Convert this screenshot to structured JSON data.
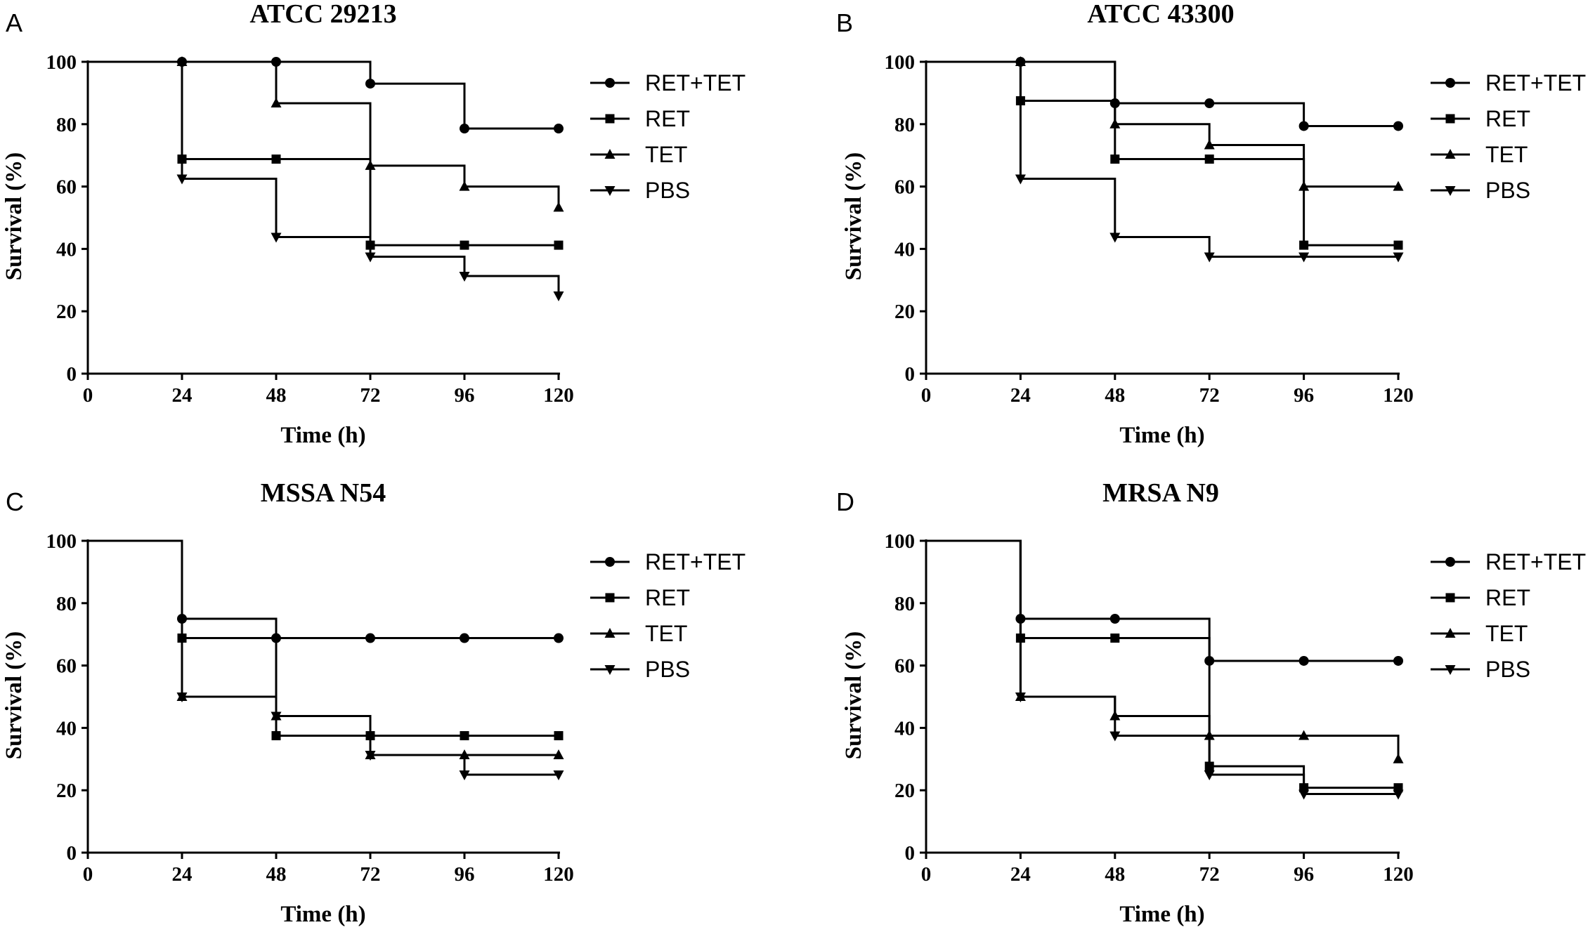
{
  "chart_data": [
    {
      "type": "line",
      "panel_letter": "A",
      "title": "ATCC 29213",
      "xlabel": "Time (h)",
      "ylabel": "Survival (%)",
      "xlim": [
        0,
        120
      ],
      "ylim": [
        0,
        100
      ],
      "xticks": [
        0,
        24,
        48,
        72,
        96,
        120
      ],
      "yticks": [
        0,
        20,
        40,
        60,
        80,
        100
      ],
      "legend_position": "top-right",
      "series": [
        {
          "name": "RET+TET",
          "marker": "circle",
          "x": [
            0,
            24,
            48,
            72,
            96,
            120
          ],
          "y": [
            100,
            100,
            100,
            93,
            78.6,
            78.6
          ]
        },
        {
          "name": "RET",
          "marker": "square",
          "x": [
            0,
            24,
            48,
            72,
            96,
            120
          ],
          "y": [
            100,
            68.8,
            68.8,
            41.2,
            41.2,
            41.2
          ]
        },
        {
          "name": "TET",
          "marker": "triangle-up",
          "x": [
            0,
            24,
            48,
            72,
            96,
            120
          ],
          "y": [
            100,
            100,
            86.7,
            66.7,
            60,
            53.3
          ]
        },
        {
          "name": "PBS",
          "marker": "triangle-down",
          "x": [
            0,
            24,
            48,
            72,
            96,
            120
          ],
          "y": [
            100,
            62.5,
            43.8,
            37.5,
            31.3,
            25
          ]
        }
      ]
    },
    {
      "type": "line",
      "panel_letter": "B",
      "title": "ATCC 43300",
      "xlabel": "Time (h)",
      "ylabel": "Survival (%)",
      "xlim": [
        0,
        120
      ],
      "ylim": [
        0,
        100
      ],
      "xticks": [
        0,
        24,
        48,
        72,
        96,
        120
      ],
      "yticks": [
        0,
        20,
        40,
        60,
        80,
        100
      ],
      "legend_position": "top-right",
      "series": [
        {
          "name": "RET+TET",
          "marker": "circle",
          "x": [
            0,
            24,
            48,
            72,
            96,
            120
          ],
          "y": [
            100,
            100,
            86.7,
            86.7,
            79.4,
            79.4
          ]
        },
        {
          "name": "RET",
          "marker": "square",
          "x": [
            0,
            24,
            48,
            72,
            96,
            120
          ],
          "y": [
            100,
            87.5,
            68.8,
            68.8,
            41.2,
            41.2
          ]
        },
        {
          "name": "TET",
          "marker": "triangle-up",
          "x": [
            0,
            24,
            48,
            72,
            96,
            120
          ],
          "y": [
            100,
            100,
            80,
            73.3,
            60,
            60
          ]
        },
        {
          "name": "PBS",
          "marker": "triangle-down",
          "x": [
            0,
            24,
            48,
            72,
            96,
            120
          ],
          "y": [
            100,
            62.5,
            43.8,
            37.5,
            37.5,
            37.5
          ]
        }
      ]
    },
    {
      "type": "line",
      "panel_letter": "C",
      "title": "MSSA N54",
      "xlabel": "Time (h)",
      "ylabel": "Survival (%)",
      "xlim": [
        0,
        120
      ],
      "ylim": [
        0,
        100
      ],
      "xticks": [
        0,
        24,
        48,
        72,
        96,
        120
      ],
      "yticks": [
        0,
        20,
        40,
        60,
        80,
        100
      ],
      "legend_position": "top-right",
      "series": [
        {
          "name": "RET+TET",
          "marker": "circle",
          "x": [
            0,
            24,
            48,
            72,
            96,
            120
          ],
          "y": [
            100,
            75,
            68.8,
            68.8,
            68.8,
            68.8
          ]
        },
        {
          "name": "RET",
          "marker": "square",
          "x": [
            0,
            24,
            48,
            72,
            96,
            120
          ],
          "y": [
            100,
            68.8,
            37.5,
            37.5,
            37.5,
            37.5
          ]
        },
        {
          "name": "TET",
          "marker": "triangle-up",
          "x": [
            0,
            24,
            48,
            72,
            96,
            120
          ],
          "y": [
            100,
            50,
            43.8,
            31.3,
            31.3,
            31.3
          ]
        },
        {
          "name": "PBS",
          "marker": "triangle-down",
          "x": [
            0,
            24,
            48,
            72,
            96,
            120
          ],
          "y": [
            100,
            50,
            43.8,
            31.3,
            25,
            25
          ]
        }
      ]
    },
    {
      "type": "line",
      "panel_letter": "D",
      "title": "MRSA N9",
      "xlabel": "Time (h)",
      "ylabel": "Survival (%)",
      "xlim": [
        0,
        120
      ],
      "ylim": [
        0,
        100
      ],
      "xticks": [
        0,
        24,
        48,
        72,
        96,
        120
      ],
      "yticks": [
        0,
        20,
        40,
        60,
        80,
        100
      ],
      "legend_position": "top-right",
      "series": [
        {
          "name": "RET+TET",
          "marker": "circle",
          "x": [
            0,
            24,
            48,
            72,
            96,
            120
          ],
          "y": [
            100,
            75,
            75,
            61.5,
            61.5,
            61.5
          ]
        },
        {
          "name": "RET",
          "marker": "square",
          "x": [
            0,
            24,
            48,
            72,
            96,
            120
          ],
          "y": [
            100,
            68.8,
            68.8,
            27.7,
            20.8,
            20.8
          ]
        },
        {
          "name": "TET",
          "marker": "triangle-up",
          "x": [
            0,
            24,
            48,
            72,
            96,
            120
          ],
          "y": [
            100,
            50,
            43.8,
            37.5,
            37.5,
            30
          ]
        },
        {
          "name": "PBS",
          "marker": "triangle-down",
          "x": [
            0,
            24,
            48,
            72,
            96,
            120
          ],
          "y": [
            100,
            50,
            37.5,
            25,
            18.8,
            18.8
          ]
        }
      ]
    }
  ]
}
